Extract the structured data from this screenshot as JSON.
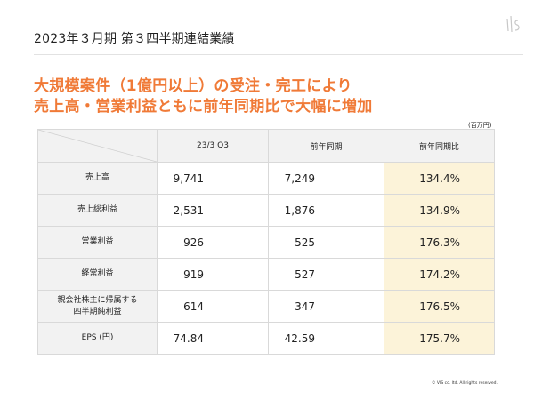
{
  "header": {
    "title": "2023年３月期 第３四半期連結業績"
  },
  "headline": {
    "line1": "大規模案件（1億円以上）の受注・完工により",
    "line2": "売上高・営業利益ともに前年同期比で大幅に増加"
  },
  "table": {
    "unit": "(百万円)",
    "columns": [
      "23/3 Q3",
      "前年同期",
      "前年同期比"
    ],
    "rows": [
      {
        "label": "売上高",
        "current": "9,741",
        "prior": "7,249",
        "ratio": "134.4%"
      },
      {
        "label": "売上総利益",
        "current": "2,531",
        "prior": "1,876",
        "ratio": "134.9%"
      },
      {
        "label": "営業利益",
        "current": "926",
        "prior": "525",
        "ratio": "176.3%"
      },
      {
        "label": "経常利益",
        "current": "919",
        "prior": "527",
        "ratio": "174.2%"
      },
      {
        "label_line1": "親会社株主に帰属する",
        "label_line2": "四半期純利益",
        "current": "614",
        "prior": "347",
        "ratio": "176.5%"
      },
      {
        "label": "EPS (円)",
        "current": "74.84",
        "prior": "42.59",
        "ratio": "175.7%"
      }
    ]
  },
  "footer": {
    "copyright": "© VIS co. ltd. All rights reserved."
  },
  "colors": {
    "accent": "#f07a37",
    "header_cell": "#f2f2f2",
    "highlight_cell": "#fcf3d9",
    "border": "#d9d9d9"
  },
  "icons": {
    "logo": "vis-logo-icon"
  }
}
